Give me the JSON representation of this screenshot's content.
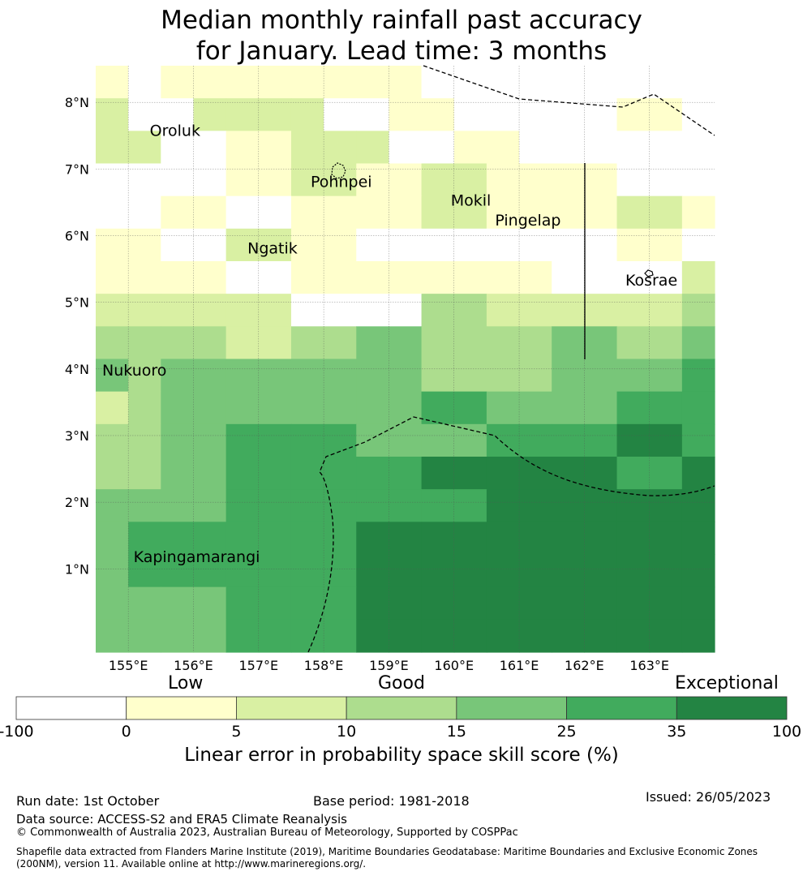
{
  "title": {
    "line1": "Median monthly rainfall past accuracy",
    "line2": "for January. Lead time: 3 months"
  },
  "map": {
    "lon_range": [
      154.5,
      164.0
    ],
    "lat_range": [
      -0.25,
      8.55
    ],
    "grid_step": 0.833,
    "x_ticks": [
      {
        "value": 155,
        "label": "155°E"
      },
      {
        "value": 156,
        "label": "156°E"
      },
      {
        "value": 157,
        "label": "157°E"
      },
      {
        "value": 158,
        "label": "158°E"
      },
      {
        "value": 159,
        "label": "159°E"
      },
      {
        "value": 160,
        "label": "160°E"
      },
      {
        "value": 161,
        "label": "161°E"
      },
      {
        "value": 162,
        "label": "162°E"
      },
      {
        "value": 163,
        "label": "163°E"
      }
    ],
    "y_ticks": [
      {
        "value": 1,
        "label": "1°N"
      },
      {
        "value": 2,
        "label": "2°N"
      },
      {
        "value": 3,
        "label": "3°N"
      },
      {
        "value": 4,
        "label": "4°N"
      },
      {
        "value": 5,
        "label": "5°N"
      },
      {
        "value": 6,
        "label": "6°N"
      },
      {
        "value": 7,
        "label": "7°N"
      },
      {
        "value": 8,
        "label": "8°N"
      }
    ],
    "skill_grid_rows_top_to_bottom": [
      [
        1,
        0,
        1,
        1,
        1,
        1,
        1,
        1,
        1,
        1,
        0,
        0,
        0,
        0,
        0,
        0,
        0,
        0,
        0
      ],
      [
        2,
        0,
        0,
        2,
        2,
        2,
        2,
        0,
        0,
        1,
        1,
        0,
        0,
        0,
        0,
        0,
        1,
        1,
        0
      ],
      [
        2,
        2,
        0,
        0,
        1,
        1,
        2,
        2,
        2,
        0,
        0,
        1,
        1,
        0,
        0,
        0,
        0,
        0,
        0
      ],
      [
        0,
        0,
        0,
        0,
        1,
        1,
        2,
        2,
        1,
        1,
        2,
        2,
        1,
        1,
        1,
        1,
        0,
        0,
        0
      ],
      [
        0,
        0,
        1,
        1,
        0,
        0,
        1,
        1,
        1,
        1,
        2,
        2,
        1,
        1,
        1,
        1,
        2,
        2,
        1
      ],
      [
        1,
        1,
        0,
        0,
        2,
        2,
        1,
        1,
        0,
        0,
        0,
        0,
        0,
        0,
        0,
        0,
        1,
        1,
        0
      ],
      [
        1,
        1,
        1,
        1,
        0,
        0,
        1,
        1,
        1,
        1,
        1,
        1,
        1,
        1,
        0,
        0,
        0,
        0,
        2
      ],
      [
        2,
        2,
        2,
        2,
        2,
        2,
        0,
        0,
        0,
        0,
        3,
        3,
        2,
        2,
        2,
        2,
        2,
        2,
        3
      ],
      [
        3,
        3,
        3,
        3,
        2,
        2,
        3,
        3,
        4,
        4,
        3,
        3,
        3,
        3,
        4,
        4,
        3,
        3,
        4
      ],
      [
        4,
        3,
        4,
        4,
        4,
        4,
        4,
        4,
        4,
        4,
        3,
        3,
        3,
        3,
        4,
        4,
        4,
        4,
        5
      ],
      [
        2,
        3,
        4,
        4,
        4,
        4,
        4,
        4,
        4,
        4,
        5,
        5,
        4,
        4,
        4,
        4,
        5,
        5,
        5
      ],
      [
        3,
        3,
        4,
        4,
        5,
        5,
        5,
        5,
        4,
        4,
        4,
        4,
        5,
        5,
        5,
        5,
        6,
        6,
        5
      ],
      [
        3,
        3,
        4,
        4,
        5,
        5,
        5,
        5,
        5,
        5,
        6,
        6,
        6,
        6,
        6,
        6,
        5,
        5,
        6
      ],
      [
        4,
        4,
        4,
        4,
        5,
        5,
        5,
        5,
        5,
        5,
        5,
        5,
        6,
        6,
        6,
        6,
        6,
        6,
        6
      ],
      [
        4,
        5,
        5,
        5,
        5,
        5,
        5,
        5,
        6,
        6,
        6,
        6,
        6,
        6,
        6,
        6,
        6,
        6,
        6
      ],
      [
        4,
        5,
        5,
        5,
        5,
        5,
        5,
        5,
        6,
        6,
        6,
        6,
        6,
        6,
        6,
        6,
        6,
        6,
        6
      ],
      [
        4,
        4,
        4,
        4,
        5,
        5,
        5,
        5,
        6,
        6,
        6,
        6,
        6,
        6,
        6,
        6,
        6,
        6,
        6
      ],
      [
        4,
        4,
        4,
        4,
        5,
        5,
        5,
        5,
        6,
        6,
        6,
        6,
        6,
        6,
        6,
        6,
        6,
        6,
        6
      ]
    ],
    "places": [
      {
        "name": "Oroluk",
        "lon": 155.33,
        "lat": 7.5
      },
      {
        "name": "Pohnpei",
        "lon": 157.8,
        "lat": 6.73
      },
      {
        "name": "Mokil",
        "lon": 159.95,
        "lat": 6.45
      },
      {
        "name": "Pingelap",
        "lon": 160.63,
        "lat": 6.15
      },
      {
        "name": "Ngatik",
        "lon": 156.83,
        "lat": 5.73
      },
      {
        "name": "Kosrae",
        "lon": 162.63,
        "lat": 5.25
      },
      {
        "name": "Nukuoro",
        "lon": 154.6,
        "lat": 3.9
      },
      {
        "name": "Kapingamarangi",
        "lon": 155.08,
        "lat": 1.1
      }
    ]
  },
  "colorbar": {
    "category_labels": {
      "low": "Low",
      "good": "Good",
      "exceptional": "Exceptional"
    },
    "colors": [
      "#ffffff",
      "#ffffcc",
      "#d9f0a3",
      "#addd8e",
      "#78c679",
      "#41ab5d",
      "#238443"
    ],
    "tick_labels": [
      "-100",
      "0",
      "5",
      "10",
      "15",
      "25",
      "35",
      "100"
    ],
    "title": "Linear error in probability space skill score (%)"
  },
  "footer": {
    "run_date": "Run date: 1st October",
    "base_period": "Base period: 1981-2018",
    "issued": "Issued: 26/05/2023",
    "data_source": "Data source: ACCESS-S2 and ERA5 Climate Reanalysis",
    "copyright": "© Commonwealth of Australia 2023, Australian Bureau of Meteorology, Supported by COSPPac",
    "shapefile_line1": "Shapefile data extracted from Flanders Marine Institute (2019), Maritime Boundaries Geodatabase: Maritime Boundaries and Exclusive Economic Zones",
    "shapefile_line2": "(200NM), version 11. Available online at http://www.marineregions.org/."
  }
}
